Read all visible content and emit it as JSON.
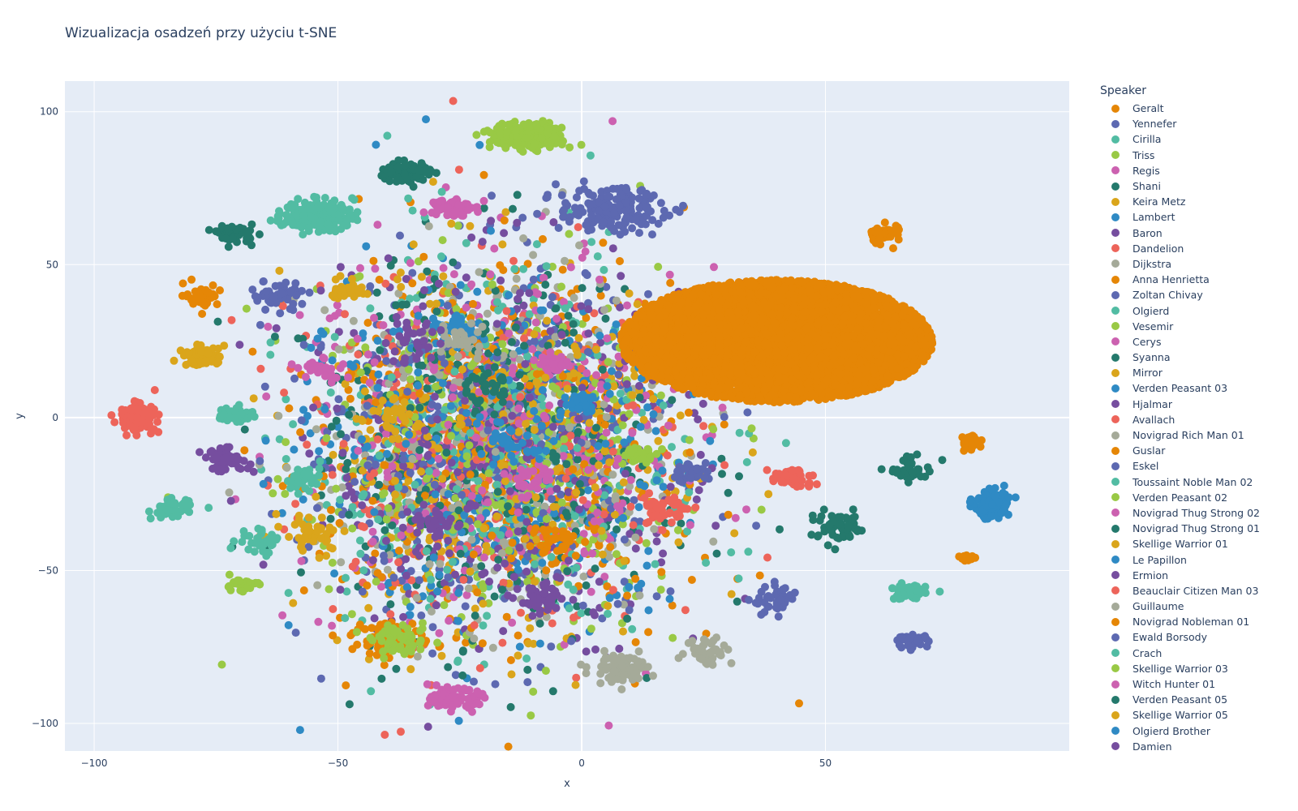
{
  "chart_data": {
    "type": "scatter",
    "title": "Wizualizacja osadzeń przy użyciu t-SNE",
    "xlabel": "x",
    "ylabel": "y",
    "xlim": [
      -106,
      100
    ],
    "ylim": [
      -109,
      110
    ],
    "x_ticks": [
      -100,
      -50,
      0,
      50
    ],
    "y_ticks": [
      100,
      50,
      0,
      -50,
      -100
    ],
    "x_tick_labels": [
      "−100",
      "−50",
      "0",
      "50"
    ],
    "y_tick_labels": [
      "100",
      "50",
      "0",
      "−50",
      "−100"
    ],
    "grid": true,
    "legend_title": "Speaker",
    "legend_placement": "right",
    "series": [
      {
        "name": "Geralt",
        "color": "#E58606",
        "clusters": [
          [
            40,
            25,
            32,
            20,
            14000
          ],
          [
            62,
            60,
            3,
            3,
            40
          ],
          [
            80,
            -8,
            2,
            2,
            30
          ],
          [
            79,
            -46,
            1.2,
            0.8,
            18
          ]
        ],
        "noise": 220
      },
      {
        "name": "Yennefer",
        "color": "#5D69B1",
        "clusters": [
          [
            6,
            68,
            9,
            6,
            180
          ],
          [
            68,
            -73,
            2.5,
            1.5,
            40
          ]
        ],
        "noise": 140
      },
      {
        "name": "Cirilla",
        "color": "#52BCA3",
        "clusters": [
          [
            -54,
            66,
            6,
            4,
            220
          ],
          [
            67,
            -57,
            3,
            2,
            60
          ]
        ],
        "noise": 120
      },
      {
        "name": "Triss",
        "color": "#99C945",
        "clusters": [
          [
            -11,
            92,
            6,
            3.5,
            260
          ]
        ],
        "noise": 140
      },
      {
        "name": "Regis",
        "color": "#CC61B0",
        "clusters": [
          [
            -27,
            69,
            3.5,
            2.5,
            90
          ],
          [
            -26,
            -92,
            4,
            2.5,
            110
          ]
        ],
        "noise": 140
      },
      {
        "name": "Shani",
        "color": "#24796C",
        "clusters": [
          [
            -36,
            80,
            4,
            3,
            100
          ],
          [
            -71,
            60,
            3,
            2.5,
            50
          ]
        ],
        "noise": 130
      },
      {
        "name": "Keira Metz",
        "color": "#DAA51B",
        "clusters": [
          [
            -78,
            20,
            3,
            2.5,
            80
          ]
        ],
        "noise": 130
      },
      {
        "name": "Lambert",
        "color": "#2F8AC4",
        "clusters": [
          [
            84,
            -28,
            3,
            3.5,
            130
          ]
        ],
        "noise": 120
      },
      {
        "name": "Baron",
        "color": "#764E9F",
        "clusters": [
          [
            -73,
            -14,
            4,
            3,
            60
          ]
        ],
        "noise": 120
      },
      {
        "name": "Dandelion",
        "color": "#ED645A",
        "clusters": [
          [
            -91,
            0,
            3,
            3.5,
            150
          ]
        ],
        "noise": 120
      },
      {
        "name": "Dijkstra",
        "color": "#A5AA99",
        "clusters": [
          [
            8,
            -82,
            5,
            4,
            80
          ]
        ],
        "noise": 120
      },
      {
        "name": "Anna Henrietta",
        "color": "#E58606",
        "clusters": [
          [
            -40,
            -72,
            6,
            5,
            60
          ]
        ],
        "noise": 110
      },
      {
        "name": "Zoltan Chivay",
        "color": "#5D69B1",
        "clusters": [
          [
            -62,
            40,
            5,
            4,
            50
          ]
        ],
        "noise": 110
      },
      {
        "name": "Olgierd",
        "color": "#52BCA3",
        "clusters": [
          [
            -71,
            1,
            3,
            2,
            60
          ],
          [
            -84,
            -30,
            3.5,
            2.5,
            50
          ]
        ],
        "noise": 110
      },
      {
        "name": "Vesemir",
        "color": "#99C945",
        "clusters": [
          [
            -37,
            -73,
            5,
            4,
            60
          ]
        ],
        "noise": 110
      },
      {
        "name": "Cerys",
        "color": "#CC61B0",
        "clusters": [
          [
            -6,
            18,
            2.5,
            2,
            50
          ]
        ],
        "noise": 100
      },
      {
        "name": "Syanna",
        "color": "#24796C",
        "clusters": [
          [
            53,
            -36,
            5,
            4,
            60
          ]
        ],
        "noise": 100
      },
      {
        "name": "Mirror",
        "color": "#DAA51B",
        "clusters": [
          [
            -55,
            -38,
            5,
            5,
            40
          ]
        ],
        "noise": 100
      },
      {
        "name": "Verden Peasant 03",
        "color": "#2F8AC4",
        "clusters": [
          [
            0,
            5,
            3,
            3,
            40
          ]
        ],
        "noise": 100
      },
      {
        "name": "Hjalmar",
        "color": "#764E9F",
        "clusters": [
          [
            -8,
            -60,
            4,
            4,
            50
          ]
        ],
        "noise": 100
      },
      {
        "name": "Avallach",
        "color": "#ED645A",
        "clusters": [
          [
            17,
            -30,
            5,
            5,
            50
          ]
        ],
        "noise": 100
      },
      {
        "name": "Novigrad Rich Man 01",
        "color": "#A5AA99",
        "clusters": [
          [
            26,
            -76,
            4,
            4,
            40
          ]
        ],
        "noise": 100
      },
      {
        "name": "Guslar",
        "color": "#E58606",
        "clusters": [
          [
            -78,
            40,
            3,
            3,
            40
          ]
        ],
        "noise": 90
      },
      {
        "name": "Eskel",
        "color": "#5D69B1",
        "clusters": [
          [
            23,
            -18,
            3,
            3,
            40
          ]
        ],
        "noise": 90
      },
      {
        "name": "Toussaint Noble Man 02",
        "color": "#52BCA3",
        "clusters": [
          [
            -57,
            -20,
            3,
            3,
            30
          ]
        ],
        "noise": 90
      },
      {
        "name": "Verden Peasant 02",
        "color": "#99C945",
        "clusters": [
          [
            12,
            -12,
            3,
            2,
            30
          ]
        ],
        "noise": 90
      },
      {
        "name": "Novigrad Thug Strong 02",
        "color": "#CC61B0",
        "clusters": [
          [
            -53,
            16,
            4,
            3,
            30
          ]
        ],
        "noise": 90
      },
      {
        "name": "Novigrad Thug Strong 01",
        "color": "#24796C",
        "clusters": [
          [
            68,
            -17,
            4,
            3,
            40
          ]
        ],
        "noise": 90
      },
      {
        "name": "Skellige Warrior 01",
        "color": "#DAA51B",
        "clusters": [
          [
            -48,
            42,
            3,
            3,
            30
          ]
        ],
        "noise": 90
      },
      {
        "name": "Le Papillon",
        "color": "#2F8AC4",
        "clusters": [
          [
            -26,
            30,
            4,
            4,
            30
          ]
        ],
        "noise": 90
      },
      {
        "name": "Ermion",
        "color": "#764E9F",
        "clusters": [
          [
            -30,
            -35,
            4,
            4,
            30
          ]
        ],
        "noise": 90
      },
      {
        "name": "Beauclair Citizen Man 03",
        "color": "#ED645A",
        "clusters": [
          [
            43,
            -20,
            4,
            3,
            40
          ]
        ],
        "noise": 90
      },
      {
        "name": "Guillaume",
        "color": "#A5AA99",
        "clusters": [
          [
            -25,
            25,
            5,
            5,
            30
          ]
        ],
        "noise": 80
      },
      {
        "name": "Novigrad Nobleman 01",
        "color": "#E58606",
        "clusters": [
          [
            -5,
            -40,
            4,
            4,
            30
          ]
        ],
        "noise": 80
      },
      {
        "name": "Ewald Borsody",
        "color": "#5D69B1",
        "clusters": [
          [
            40,
            -60,
            4,
            4,
            40
          ]
        ],
        "noise": 80
      },
      {
        "name": "Crach",
        "color": "#52BCA3",
        "clusters": [
          [
            -67,
            -40,
            4,
            4,
            30
          ]
        ],
        "noise": 80
      },
      {
        "name": "Skellige Warrior 03",
        "color": "#99C945",
        "clusters": [
          [
            -70,
            -55,
            3,
            2,
            30
          ]
        ],
        "noise": 80
      },
      {
        "name": "Witch Hunter 01",
        "color": "#CC61B0",
        "clusters": [
          [
            -10,
            -20,
            5,
            5,
            30
          ]
        ],
        "noise": 80
      },
      {
        "name": "Verden Peasant 05",
        "color": "#24796C",
        "clusters": [
          [
            -20,
            10,
            5,
            5,
            30
          ]
        ],
        "noise": 80
      },
      {
        "name": "Skellige Warrior 05",
        "color": "#DAA51B",
        "clusters": [
          [
            -40,
            0,
            5,
            5,
            30
          ]
        ],
        "noise": 80
      },
      {
        "name": "Olgierd Brother",
        "color": "#2F8AC4",
        "clusters": [
          [
            -15,
            -10,
            5,
            5,
            30
          ]
        ],
        "noise": 80
      },
      {
        "name": "Damien",
        "color": "#764E9F",
        "clusters": [
          [
            -35,
            25,
            5,
            5,
            30
          ]
        ],
        "noise": 80
      }
    ]
  }
}
